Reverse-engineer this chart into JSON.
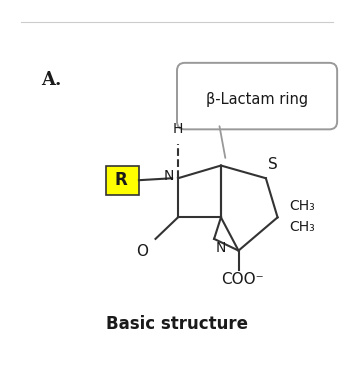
{
  "title": "A.",
  "subtitle": "Basic structure",
  "label_beta_lactam": "β-Lactam ring",
  "label_R": "R",
  "label_H": "H",
  "label_N1": "N",
  "label_N2": "N",
  "label_S": "S",
  "label_O1": "O",
  "label_CH3_1": "CH₃",
  "label_CH3_2": "CH₃",
  "label_COO": "COO⁻",
  "bg_color": "#ffffff",
  "R_highlight_color": "#ffff00",
  "line_color": "#333333",
  "text_color": "#1a1a1a",
  "box_color": "#999999"
}
